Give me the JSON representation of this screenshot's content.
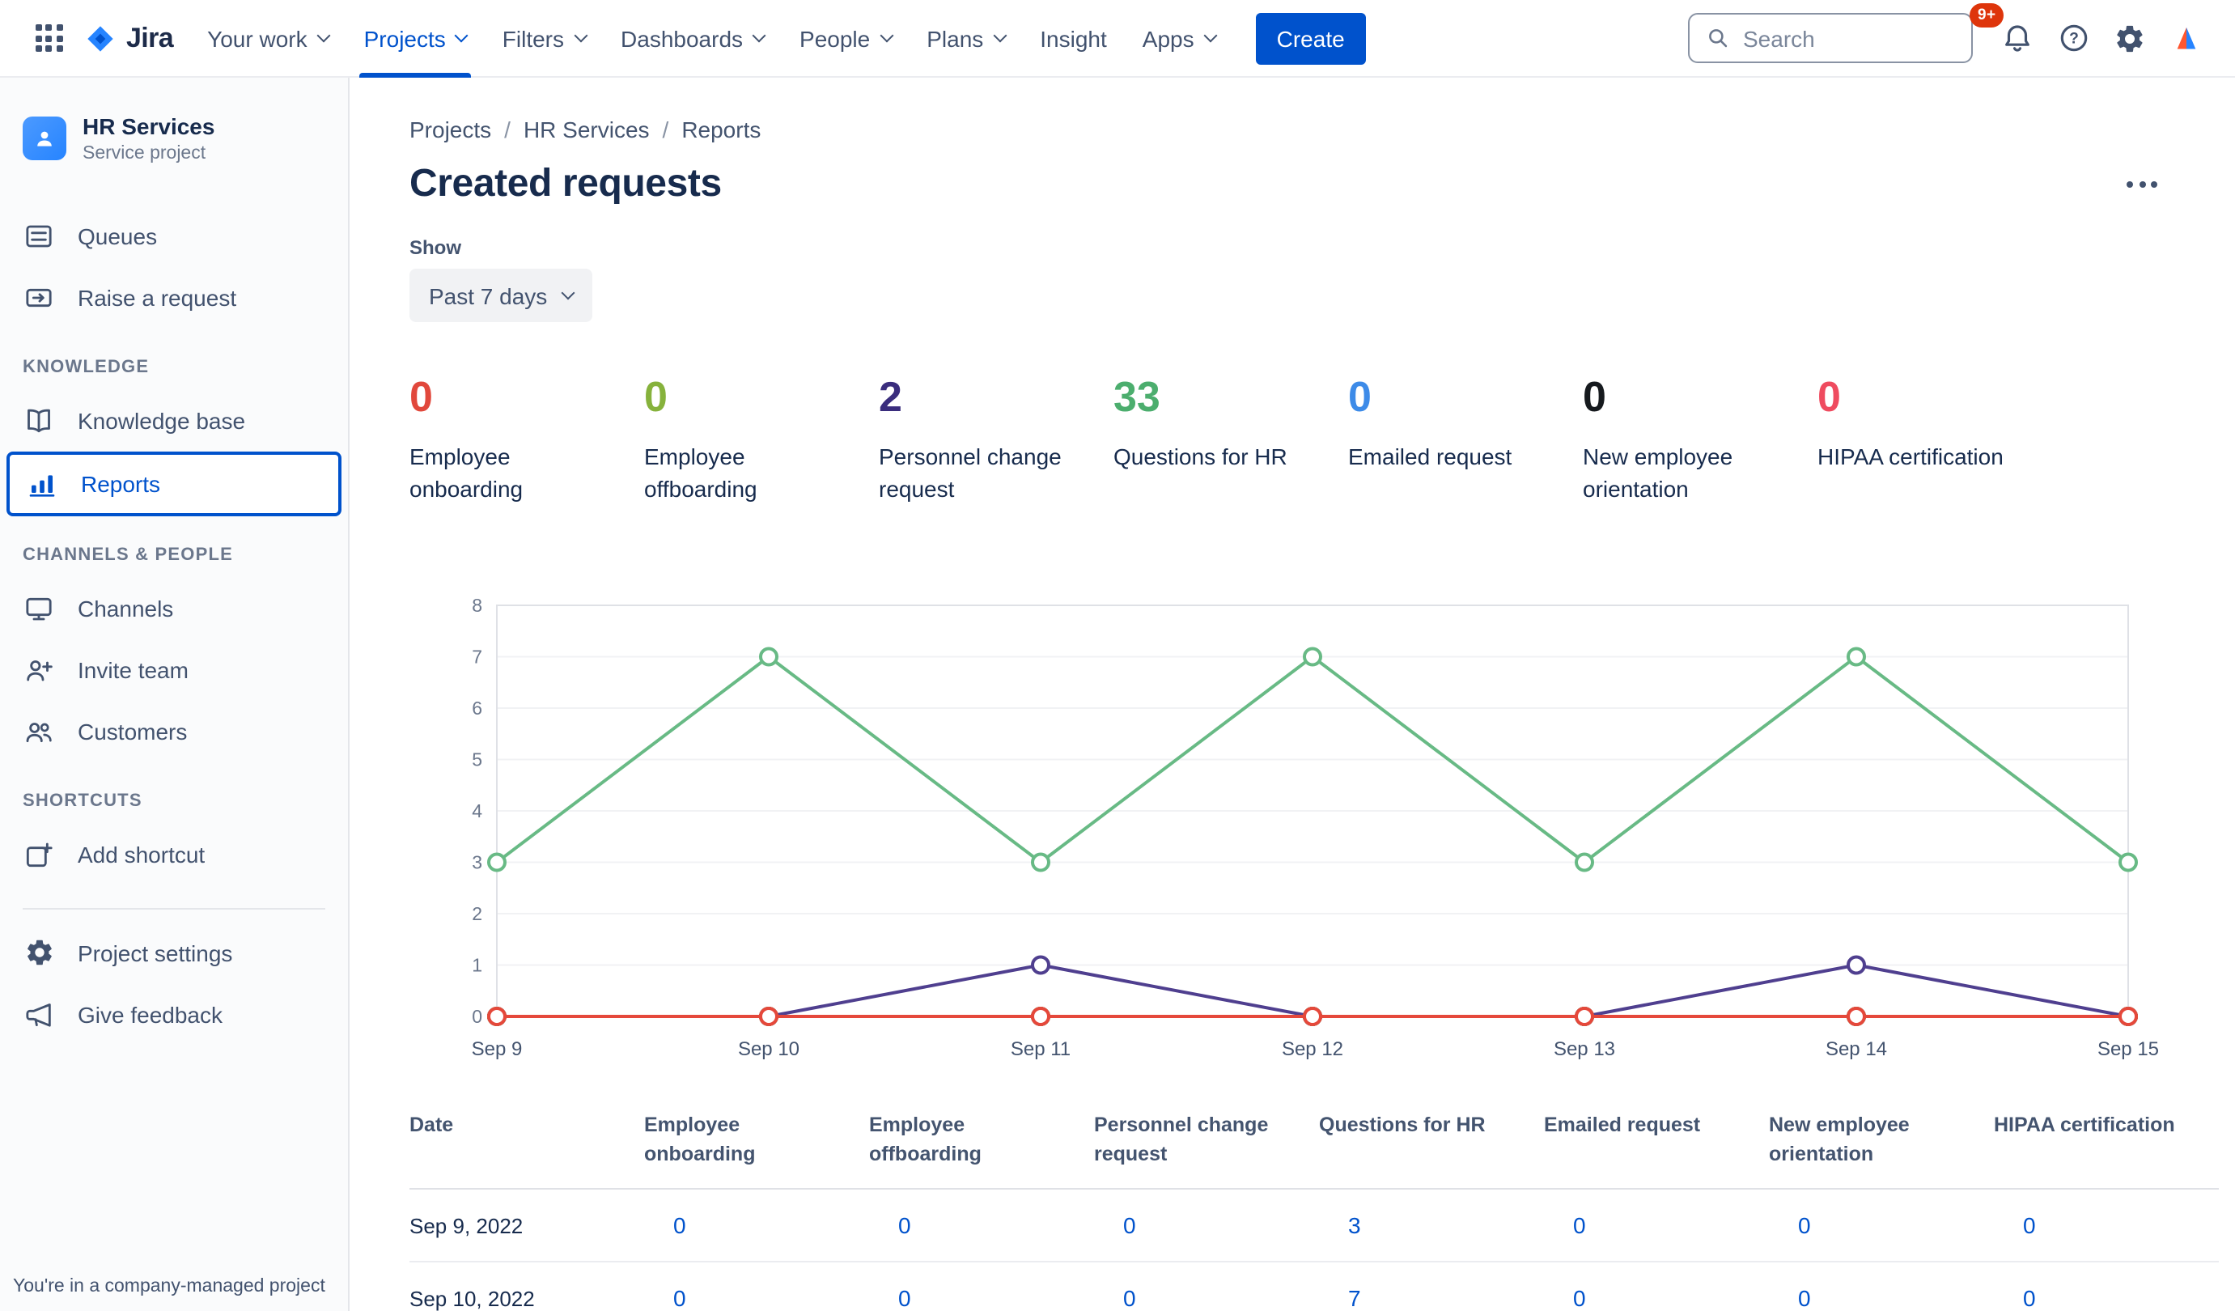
{
  "topbar": {
    "logo_text": "Jira",
    "nav": [
      {
        "label": "Your work"
      },
      {
        "label": "Projects"
      },
      {
        "label": "Filters"
      },
      {
        "label": "Dashboards"
      },
      {
        "label": "People"
      },
      {
        "label": "Plans"
      },
      {
        "label": "Insight"
      },
      {
        "label": "Apps"
      }
    ],
    "create_label": "Create",
    "search_placeholder": "Search",
    "notification_badge": "9+"
  },
  "sidebar": {
    "project_name": "HR Services",
    "project_type": "Service project",
    "queues": "Queues",
    "raise_request": "Raise a request",
    "section_knowledge": "KNOWLEDGE",
    "knowledge_base": "Knowledge base",
    "reports": "Reports",
    "section_channels": "CHANNELS & PEOPLE",
    "channels": "Channels",
    "invite_team": "Invite team",
    "customers": "Customers",
    "section_shortcuts": "SHORTCUTS",
    "add_shortcut": "Add shortcut",
    "project_settings": "Project settings",
    "give_feedback": "Give feedback",
    "note": "You're in a company-managed project"
  },
  "main": {
    "breadcrumbs": [
      "Projects",
      "HR Services",
      "Reports"
    ],
    "title": "Created requests",
    "show_label": "Show",
    "range_value": "Past 7 days",
    "stats": [
      {
        "value": "0",
        "label": "Employee onboarding",
        "color": "#E1483C"
      },
      {
        "value": "0",
        "label": "Employee offboarding",
        "color": "#86B23C"
      },
      {
        "value": "2",
        "label": "Personnel change request",
        "color": "#3A2D7D"
      },
      {
        "value": "33",
        "label": "Questions for HR",
        "color": "#4CAE6E"
      },
      {
        "value": "0",
        "label": "Emailed request",
        "color": "#3D8BE8"
      },
      {
        "value": "0",
        "label": "New employee orientation",
        "color": "#161A1E"
      },
      {
        "value": "0",
        "label": "HIPAA certification",
        "color": "#EF4B5F"
      }
    ]
  },
  "chart_data": {
    "type": "line",
    "title": "Created requests",
    "x": [
      "Sep 9",
      "Sep 10",
      "Sep 11",
      "Sep 12",
      "Sep 13",
      "Sep 14",
      "Sep 15"
    ],
    "ylim": [
      0,
      8
    ],
    "yticks": [
      0,
      1,
      2,
      3,
      4,
      5,
      6,
      7,
      8
    ],
    "grid": true,
    "legend": "none",
    "series": [
      {
        "name": "Questions for HR",
        "color": "#68BA85",
        "values": [
          3,
          7,
          3,
          7,
          3,
          7,
          3
        ]
      },
      {
        "name": "Personnel change request",
        "color": "#4F3F8F",
        "values": [
          0,
          0,
          1,
          0,
          0,
          1,
          0
        ]
      },
      {
        "name": "Emailed request",
        "color": "#3D8BE8",
        "values": [
          0,
          0,
          0,
          0,
          0,
          0,
          0
        ]
      },
      {
        "name": "New employee orientation",
        "color": "#161A1E",
        "values": [
          0,
          0,
          0,
          0,
          0,
          0,
          0
        ]
      },
      {
        "name": "HIPAA certification",
        "color": "#EF4B5F",
        "values": [
          0,
          0,
          0,
          0,
          0,
          0,
          0
        ]
      },
      {
        "name": "Employee offboarding",
        "color": "#86B23C",
        "values": [
          0,
          0,
          0,
          0,
          0,
          0,
          0
        ]
      },
      {
        "name": "Employee onboarding",
        "color": "#E5483B",
        "values": [
          0,
          0,
          0,
          0,
          0,
          0,
          0
        ]
      }
    ]
  },
  "table": {
    "columns": [
      "Date",
      "Employee onboarding",
      "Employee offboarding",
      "Personnel change request",
      "Questions for HR",
      "Emailed request",
      "New employee orientation",
      "HIPAA certification"
    ],
    "rows": [
      {
        "date": "Sep 9, 2022",
        "values": [
          "0",
          "0",
          "0",
          "3",
          "0",
          "0",
          "0"
        ]
      },
      {
        "date": "Sep 10, 2022",
        "values": [
          "0",
          "0",
          "0",
          "7",
          "0",
          "0",
          "0"
        ]
      }
    ]
  }
}
